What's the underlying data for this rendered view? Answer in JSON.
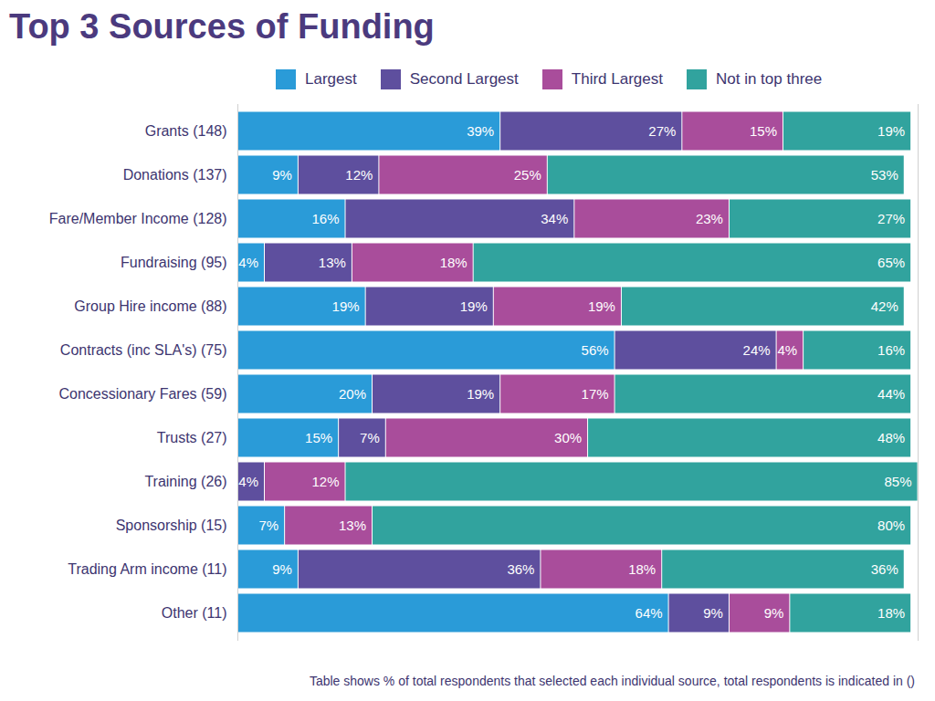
{
  "chart_data": {
    "type": "bar",
    "title": "Top 3 Sources of Funding",
    "caption": "Table shows % of total respondents that selected each individual source, total respondents is indicated in ()",
    "orientation": "horizontal",
    "stacked": true,
    "data_labels": true,
    "tick_labels": "y",
    "xlim": [
      0,
      101
    ],
    "categories": [
      "Grants (148)",
      "Donations (137)",
      "Fare/Member Income (128)",
      "Fundraising (95)",
      "Group Hire income (88)",
      "Contracts (inc SLA's) (75)",
      "Concessionary Fares (59)",
      "Trusts (27)",
      "Training (26)",
      "Sponsorship (15)",
      "Trading Arm income (11)",
      "Other (11)"
    ],
    "series": [
      {
        "name": "Largest",
        "color": "#2a9bd8",
        "values": [
          39,
          9,
          16,
          4,
          19,
          56,
          20,
          15,
          0,
          7,
          9,
          64
        ],
        "value_labels": [
          "39%",
          "9%",
          "16%",
          "4%",
          "19%",
          "56%",
          "20%",
          "15%",
          null,
          "7%",
          "9%",
          "64%"
        ]
      },
      {
        "name": "Second Largest",
        "color": "#5e4f9e",
        "values": [
          27,
          12,
          34,
          13,
          19,
          24,
          19,
          7,
          4,
          0,
          36,
          9
        ],
        "value_labels": [
          "27%",
          "12%",
          "34%",
          "13%",
          "19%",
          "24%",
          "19%",
          "7%",
          "4%",
          null,
          "36%",
          "9%"
        ]
      },
      {
        "name": "Third Largest",
        "color": "#a94d9b",
        "values": [
          15,
          25,
          23,
          18,
          19,
          4,
          17,
          30,
          12,
          13,
          18,
          9
        ],
        "value_labels": [
          "15%",
          "25%",
          "23%",
          "18%",
          "19%",
          "4%",
          "17%",
          "30%",
          "12%",
          "13%",
          "18%",
          "9%"
        ]
      },
      {
        "name": "Not in top three",
        "color": "#31a39e",
        "values": [
          19,
          53,
          27,
          65,
          42,
          16,
          44,
          48,
          85,
          80,
          36,
          18
        ],
        "value_labels": [
          "19%",
          "53%",
          "27%",
          "65%",
          "42%",
          "16%",
          "44%",
          "48%",
          "85%",
          "80%",
          "36%",
          "18%"
        ]
      }
    ]
  }
}
